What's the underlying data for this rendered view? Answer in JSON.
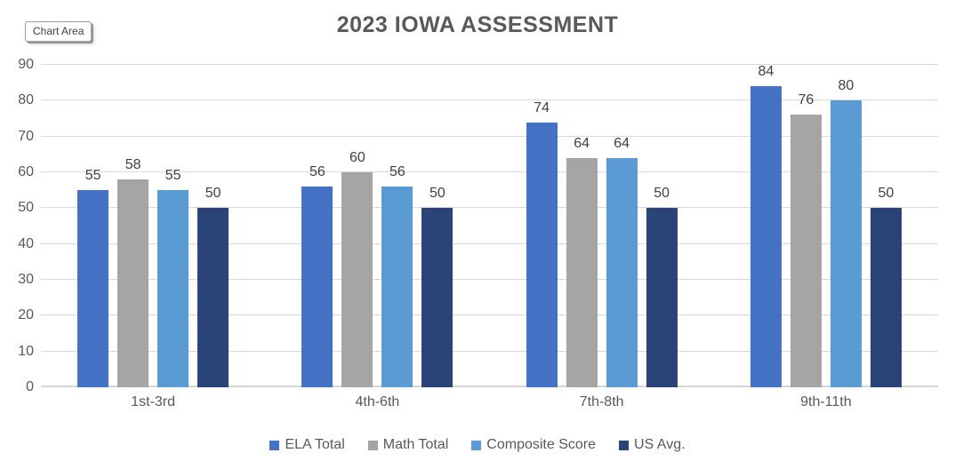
{
  "tooltip": {
    "label": "Chart Area"
  },
  "chart_data": {
    "type": "bar",
    "title": "2023 IOWA ASSESSMENT",
    "categories": [
      "1st-3rd",
      "4th-6th",
      "7th-8th",
      "9th-11th"
    ],
    "series": [
      {
        "name": "ELA Total",
        "color": "#4472C4",
        "values": [
          55,
          56,
          74,
          84
        ]
      },
      {
        "name": "Math Total",
        "color": "#A5A5A5",
        "values": [
          58,
          60,
          64,
          76
        ]
      },
      {
        "name": "Composite Score",
        "color": "#5B9BD5",
        "values": [
          55,
          56,
          64,
          80
        ]
      },
      {
        "name": "US Avg.",
        "color": "#2A4478",
        "values": [
          50,
          50,
          50,
          50
        ]
      }
    ],
    "y_ticks": [
      0,
      10,
      20,
      30,
      40,
      50,
      60,
      70,
      80,
      90
    ],
    "ylim": [
      0,
      90
    ],
    "grid": true,
    "data_labels": true,
    "legend_position": "bottom",
    "xlabel": "",
    "ylabel": ""
  },
  "colors": {
    "title_text": "#595959",
    "axis_text": "#595959",
    "data_label_text": "#404040",
    "gridline": "#D9D9D9",
    "background": "#FFFFFF"
  }
}
